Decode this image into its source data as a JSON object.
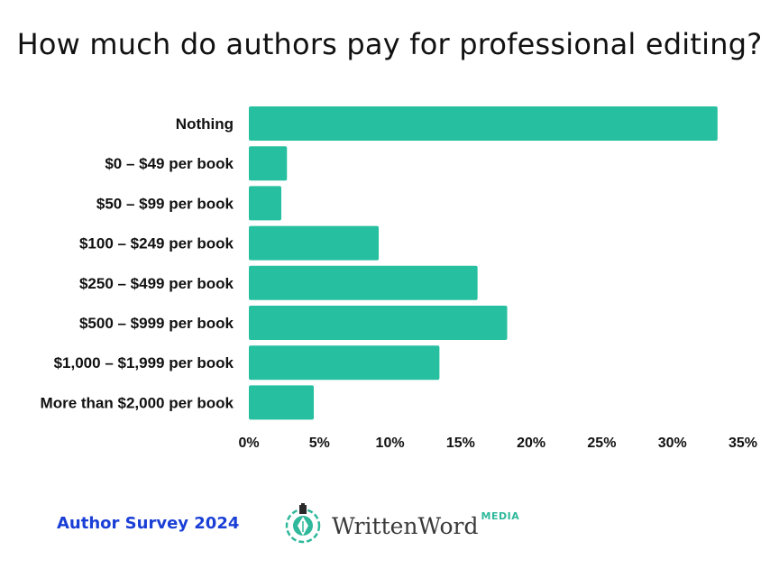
{
  "chart_data": {
    "type": "bar",
    "orientation": "horizontal",
    "title": "How much do authors pay for professional editing?",
    "categories": [
      "Nothing",
      "$0 – $49 per book",
      "$50 – $99 per book",
      "$100 – $249 per book",
      "$250 – $499 per book",
      "$500 – $999 per book",
      "$1,000 – $1,999 per book",
      "More than $2,000 per book"
    ],
    "values": [
      33.2,
      2.7,
      2.3,
      9.2,
      16.2,
      18.3,
      13.5,
      4.6
    ],
    "xlim": [
      0,
      35
    ],
    "xticks": [
      "0%",
      "5%",
      "10%",
      "15%",
      "20%",
      "25%",
      "30%",
      "35%"
    ],
    "grid": false,
    "bar_color": "#26bf9f"
  },
  "footer": {
    "survey_label": "Author Survey 2024",
    "logo_text": "WrittenWord",
    "logo_suffix": "MEDIA"
  }
}
